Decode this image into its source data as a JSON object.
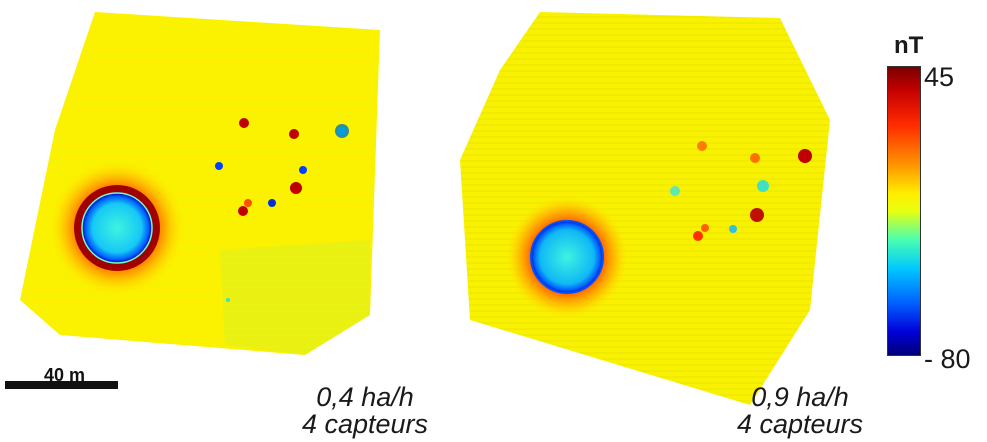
{
  "panels": [
    {
      "caption_line1": "0,4 ha/h",
      "caption_line2": "4 capteurs"
    },
    {
      "caption_line1": "0,9 ha/h",
      "caption_line2": "4 capteurs"
    }
  ],
  "colorbar": {
    "unit": "nT",
    "max_label": "45",
    "min_label": "- 80",
    "colormap": "jet"
  },
  "scale_bar": {
    "label": "40 m"
  },
  "colors": {
    "background_field": "#ffee00",
    "anomaly_positive": "#c40000",
    "anomaly_negative": "#0000d8"
  }
}
